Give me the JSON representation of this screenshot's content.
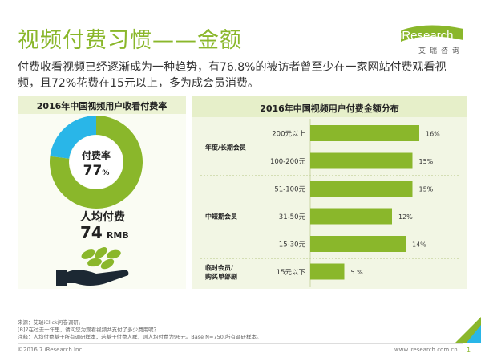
{
  "header": {
    "title": "视频付费习惯——金额",
    "subtitle": "付费收看视频已经逐渐成为一种趋势，有76.8%的被访者曾至少在一家网站付费观看视频，且72%花费在15元以上，多为成会员消费。"
  },
  "logo": {
    "word": "iResearch",
    "sub": "艾瑞咨询"
  },
  "left_panel": {
    "title": "2016年中国视频用户收看付费率",
    "donut_label": "付费率",
    "donut_value": "77",
    "donut_unit": "%",
    "avg_label": "人均付费",
    "avg_value": "74",
    "avg_unit": "RMB"
  },
  "chart_data": [
    {
      "type": "pie",
      "title": "2016年中国视频用户收看付费率",
      "slices": [
        {
          "name": "付费率",
          "value": 77
        },
        {
          "name": "",
          "value": 23
        }
      ],
      "colors": [
        "#8ab72b",
        "#29b6e8"
      ]
    },
    {
      "type": "bar",
      "orientation": "horizontal",
      "title": "2016年中国视频用户付费金额分布",
      "categories": [
        "200元以上",
        "100-200元",
        "51-100元",
        "31-50元",
        "15-30元",
        "15元以下"
      ],
      "values": [
        16,
        15,
        15,
        12,
        14,
        5
      ],
      "value_labels": [
        "16%",
        "15%",
        "15%",
        "12%",
        "14%",
        "5 %"
      ],
      "groups": [
        {
          "label": "年度/长期会员",
          "members": [
            "200元以上",
            "100-200元"
          ]
        },
        {
          "label": "中短期会员",
          "members": [
            "51-100元",
            "31-50元",
            "15-30元"
          ]
        },
        {
          "label": "临时会员/ 购买单部剧",
          "members": [
            "15元以下"
          ]
        }
      ],
      "xlim": [
        0,
        16
      ],
      "bar_color": "#8ab72b"
    }
  ],
  "notes": {
    "line1": "来源：艾瑞iClick问卷调研。",
    "line2": "[B]7在过去一年里，请问您为观看视频共支付了多少费用呢？",
    "line3": "注释：人均付费基于所有调研样本，若基于付费人群，则人均付费为96元。Base N=750,所有调研样本。"
  },
  "footer": {
    "copyright": "©2016.7 iResearch Inc.",
    "website": "www.iresearch.com.cn",
    "page": "1"
  },
  "colors": {
    "accent": "#8ab72b",
    "blue": "#29b6e8",
    "dark": "#1c2833"
  }
}
